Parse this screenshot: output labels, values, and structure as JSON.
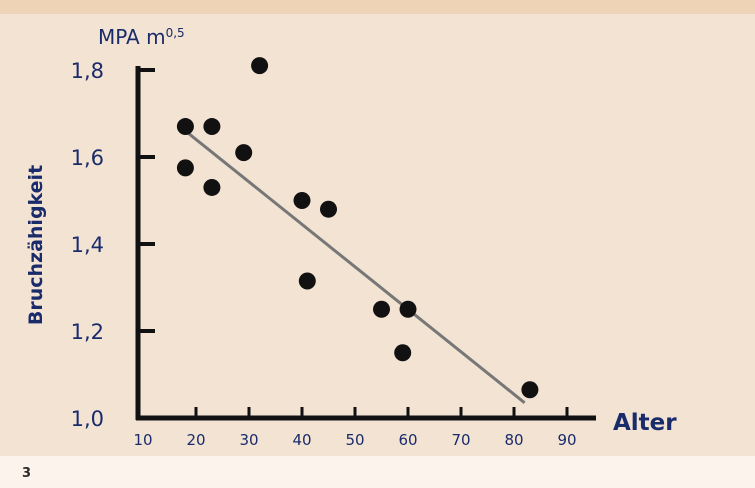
{
  "footnote": "3",
  "chart_data": {
    "type": "scatter",
    "title": "",
    "xlabel": "Alter",
    "ylabel": "Bruchzähigkeit",
    "y_unit_prefix": "MPA m",
    "y_unit_exponent": "0,5",
    "xlim": [
      10,
      95
    ],
    "ylim": [
      1.0,
      1.83
    ],
    "x_ticks": [
      10,
      20,
      30,
      40,
      50,
      60,
      70,
      80,
      90
    ],
    "x_tick_labels": [
      "10",
      "20",
      "30",
      "40",
      "50",
      "60",
      "70",
      "80",
      "90"
    ],
    "y_ticks": [
      1.0,
      1.2,
      1.4,
      1.6,
      1.8
    ],
    "y_tick_labels": [
      "1,0",
      "1,2",
      "1,4",
      "1,6",
      "1,8"
    ],
    "grid": false,
    "points": [
      {
        "x": 18,
        "y": 1.67
      },
      {
        "x": 18,
        "y": 1.575
      },
      {
        "x": 23,
        "y": 1.67
      },
      {
        "x": 23,
        "y": 1.53
      },
      {
        "x": 29,
        "y": 1.61
      },
      {
        "x": 32,
        "y": 1.81
      },
      {
        "x": 40,
        "y": 1.5
      },
      {
        "x": 41,
        "y": 1.315
      },
      {
        "x": 45,
        "y": 1.48
      },
      {
        "x": 55,
        "y": 1.25
      },
      {
        "x": 59,
        "y": 1.15
      },
      {
        "x": 60,
        "y": 1.25
      },
      {
        "x": 83,
        "y": 1.065
      }
    ],
    "trendline": {
      "x": [
        18,
        82
      ],
      "y": [
        1.66,
        1.035
      ]
    },
    "colors": {
      "axis": "#111111",
      "points": "#111111",
      "trendline": "#777777",
      "labels": "#1a2b6b"
    }
  }
}
